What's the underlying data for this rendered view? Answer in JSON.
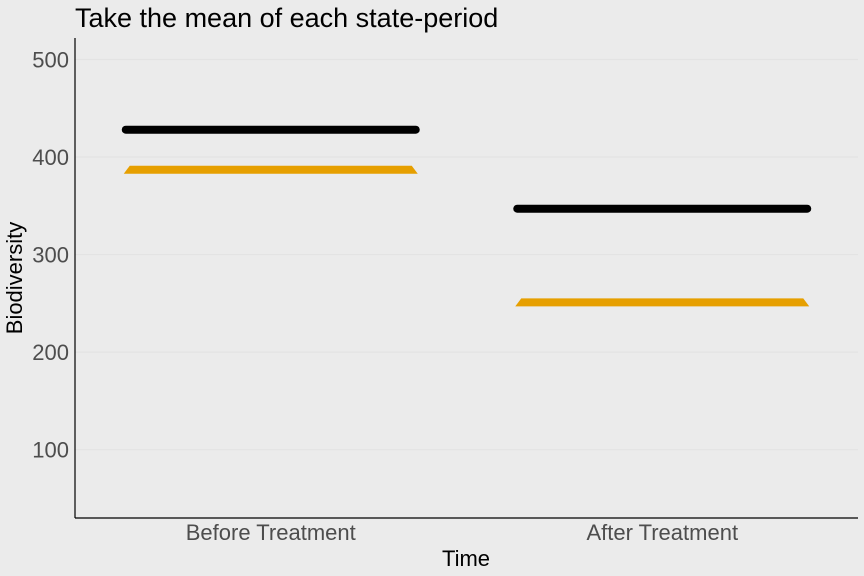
{
  "chart_data": {
    "type": "line",
    "title": "Take the mean of each state-period",
    "xlabel": "Time",
    "ylabel": "Biodiversity",
    "categories": [
      "Before Treatment",
      "After Treatment"
    ],
    "yticks": [
      100,
      200,
      300,
      400,
      500
    ],
    "ylim": [
      30,
      522
    ],
    "grid": true,
    "legend": "none",
    "series": [
      {
        "color": "#000000",
        "values": [
          428,
          347
        ]
      },
      {
        "color": "#e69f00",
        "values": [
          387,
          251
        ]
      }
    ]
  }
}
